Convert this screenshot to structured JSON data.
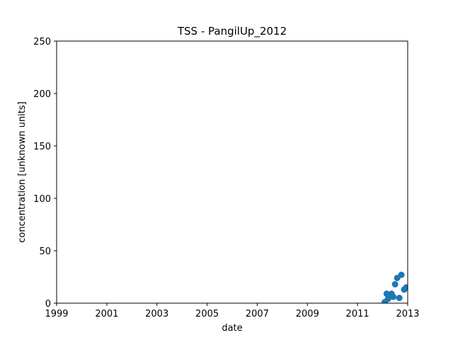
{
  "chart_data": {
    "type": "scatter",
    "title": "TSS - PangilUp_2012",
    "xlabel": "date",
    "ylabel": "concentration [unknown units]",
    "xlim": [
      "1999-01-01",
      "2013-01-01"
    ],
    "ylim": [
      0,
      250
    ],
    "x_ticks": [
      "1999",
      "2001",
      "2003",
      "2005",
      "2007",
      "2009",
      "2011",
      "2013"
    ],
    "y_ticks": [
      0,
      50,
      100,
      150,
      200,
      250
    ],
    "grid": false,
    "marker_color": "#1f77b4",
    "points": [
      {
        "x": "2012-02-01",
        "y": 1
      },
      {
        "x": "2012-03-01",
        "y": 9
      },
      {
        "x": "2012-03-20",
        "y": 4
      },
      {
        "x": "2012-04-15",
        "y": 7
      },
      {
        "x": "2012-05-10",
        "y": 9
      },
      {
        "x": "2012-06-05",
        "y": 6
      },
      {
        "x": "2012-07-01",
        "y": 18
      },
      {
        "x": "2012-08-01",
        "y": 24
      },
      {
        "x": "2012-09-01",
        "y": 5
      },
      {
        "x": "2012-10-01",
        "y": 27
      },
      {
        "x": "2012-11-10",
        "y": 13
      },
      {
        "x": "2012-12-10",
        "y": 15
      }
    ]
  }
}
